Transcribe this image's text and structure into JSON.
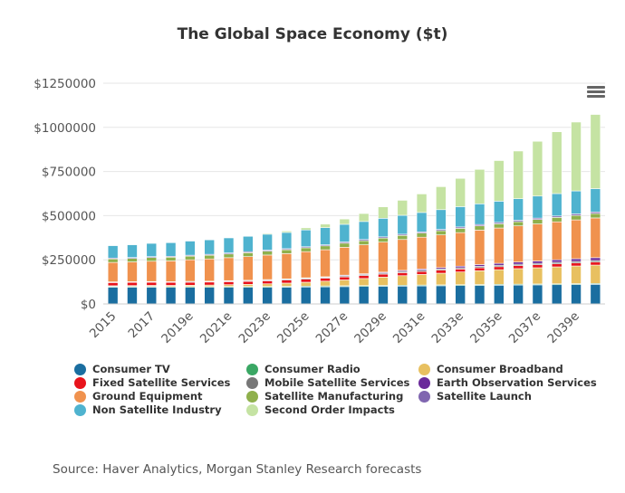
{
  "chart_data": {
    "type": "bar",
    "stacked": true,
    "title": "The Global Space Economy ($t)",
    "xlabel": "",
    "ylabel": "",
    "ylim": [
      0,
      1250000
    ],
    "y_ticks": [
      "$0",
      "$250000",
      "$500000",
      "$750000",
      "$1000000",
      "$1250000"
    ],
    "x_tick_labels": [
      "2015",
      "2017",
      "2019e",
      "2021e",
      "2023e",
      "2025e",
      "2027e",
      "2029e",
      "2031e",
      "2033e",
      "2035e",
      "2037e",
      "2039e"
    ],
    "categories": [
      "2015",
      "2016",
      "2017",
      "2018",
      "2019e",
      "2020e",
      "2021e",
      "2022e",
      "2023e",
      "2024e",
      "2025e",
      "2026e",
      "2027e",
      "2028e",
      "2029e",
      "2030e",
      "2031e",
      "2032e",
      "2033e",
      "2034e",
      "2035e",
      "2036e",
      "2037e",
      "2038e",
      "2039e",
      "2040e"
    ],
    "grid": true,
    "legend_position": "bottom",
    "series": [
      {
        "name": "Consumer TV",
        "color": "#1a6ea0",
        "values": [
          95000,
          95000,
          95000,
          94000,
          94000,
          94000,
          94000,
          94000,
          94000,
          95000,
          96000,
          97000,
          98000,
          99000,
          100000,
          101000,
          102000,
          103000,
          104000,
          105000,
          106000,
          107000,
          108000,
          109000,
          110000,
          111000
        ]
      },
      {
        "name": "Consumer Radio",
        "color": "#3aa764",
        "values": [
          5000,
          5000,
          5000,
          5000,
          5000,
          5000,
          5000,
          5000,
          5000,
          5000,
          5000,
          5000,
          5000,
          5000,
          5000,
          5000,
          5000,
          5000,
          5000,
          5000,
          5000,
          5000,
          5000,
          5000,
          5000,
          5000
        ]
      },
      {
        "name": "Consumer Broadband",
        "color": "#e8c060",
        "values": [
          3000,
          4000,
          5000,
          6000,
          7000,
          8000,
          10000,
          12000,
          15000,
          18000,
          22000,
          27000,
          33000,
          40000,
          47000,
          54000,
          60000,
          66000,
          72000,
          78000,
          83000,
          88000,
          92000,
          96000,
          100000,
          104000
        ]
      },
      {
        "name": "Fixed Satellite Services",
        "color": "#e8141c",
        "values": [
          18000,
          18000,
          18000,
          17000,
          17000,
          17000,
          17000,
          17000,
          17000,
          17000,
          17000,
          17000,
          17000,
          17000,
          17000,
          17000,
          17000,
          17000,
          17000,
          17000,
          17000,
          17000,
          17000,
          17000,
          17000,
          17000
        ]
      },
      {
        "name": "Mobile Satellite Services",
        "color": "#777777",
        "values": [
          3000,
          3000,
          3000,
          3000,
          4000,
          4000,
          4000,
          4000,
          5000,
          5000,
          5000,
          5000,
          6000,
          6000,
          6000,
          7000,
          7000,
          7000,
          7000,
          8000,
          8000,
          8000,
          8000,
          9000,
          9000,
          9000
        ]
      },
      {
        "name": "Earth Observation Services",
        "color": "#6a2a9a",
        "values": [
          1000,
          1000,
          1000,
          1000,
          1000,
          1000,
          2000,
          2000,
          2000,
          2000,
          3000,
          3000,
          4000,
          4000,
          5000,
          6000,
          7000,
          8000,
          9000,
          10000,
          11000,
          12000,
          13000,
          14000,
          15000,
          16000
        ]
      },
      {
        "name": "Ground Equipment",
        "color": "#f0924e",
        "values": [
          110000,
          112000,
          115000,
          118000,
          122000,
          126000,
          130000,
          134000,
          139000,
          143000,
          148000,
          153000,
          158000,
          164000,
          170000,
          175000,
          180000,
          185000,
          190000,
          195000,
          200000,
          205000,
          210000,
          215000,
          220000,
          225000
        ]
      },
      {
        "name": "Satellite Manufacturing",
        "color": "#8fb04c",
        "values": [
          20000,
          20000,
          21000,
          21000,
          21000,
          21000,
          21000,
          22000,
          22000,
          22000,
          22000,
          22000,
          23000,
          23000,
          23000,
          23000,
          23000,
          24000,
          24000,
          24000,
          24000,
          24000,
          25000,
          25000,
          25000,
          25000
        ]
      },
      {
        "name": "Satellite Launch",
        "color": "#8066b0",
        "values": [
          5000,
          5000,
          5000,
          5000,
          5000,
          5000,
          6000,
          6000,
          6000,
          6000,
          6000,
          6000,
          7000,
          7000,
          7000,
          7000,
          7000,
          7000,
          8000,
          8000,
          8000,
          8000,
          8000,
          8000,
          9000,
          9000
        ]
      },
      {
        "name": "Non Satellite Industry",
        "color": "#4fb3cf",
        "values": [
          70000,
          72000,
          75000,
          77000,
          80000,
          82000,
          85000,
          87000,
          90000,
          92000,
          95000,
          97000,
          100000,
          102000,
          105000,
          107000,
          110000,
          112000,
          115000,
          117000,
          120000,
          122000,
          125000,
          127000,
          130000,
          132000
        ]
      },
      {
        "name": "Second Order Impacts",
        "color": "#c5e3a3",
        "values": [
          0,
          0,
          0,
          0,
          0,
          0,
          0,
          0,
          5000,
          8000,
          12000,
          20000,
          30000,
          45000,
          65000,
          85000,
          105000,
          130000,
          160000,
          195000,
          230000,
          270000,
          310000,
          350000,
          390000,
          420000
        ]
      }
    ],
    "annotations": [
      "Source: Haver Analytics, Morgan Stanley Research forecasts"
    ]
  },
  "toolbar": {
    "menu_icon": "hamburger-menu-icon"
  }
}
